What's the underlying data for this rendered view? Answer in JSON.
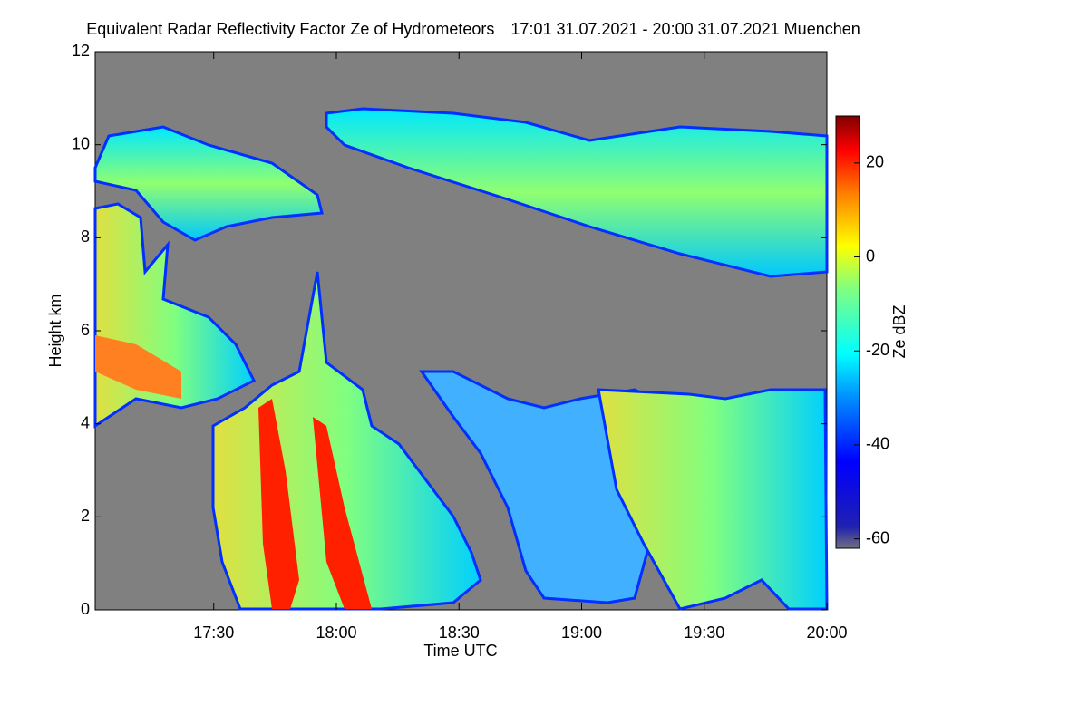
{
  "chart_data": {
    "type": "heatmap",
    "title": "Equivalent Radar Reflectivity Factor Ze of Hydrometeors",
    "subtitle": "17:01 31.07.2021 - 20:00 31.07.2021 Muenchen",
    "x_label": "Time UTC",
    "y_label": "Height km",
    "colorbar_label": "Ze dBZ",
    "xlim": [
      {
        "value": 1021,
        "label": "17:01"
      },
      {
        "value": 1200,
        "label": "20:00"
      }
    ],
    "xticks": [
      {
        "value": 1050,
        "label": "17:30"
      },
      {
        "value": 1080,
        "label": "18:00"
      },
      {
        "value": 1110,
        "label": "18:30"
      },
      {
        "value": 1140,
        "label": "19:00"
      },
      {
        "value": 1170,
        "label": "19:30"
      },
      {
        "value": 1200,
        "label": "20:00"
      }
    ],
    "ylim": [
      0,
      12
    ],
    "yticks": [
      0,
      2,
      4,
      6,
      8,
      10,
      12
    ],
    "clim": [
      -62,
      30
    ],
    "cticks": [
      -60,
      -40,
      -20,
      0,
      20
    ],
    "background_color": "#808080"
  }
}
